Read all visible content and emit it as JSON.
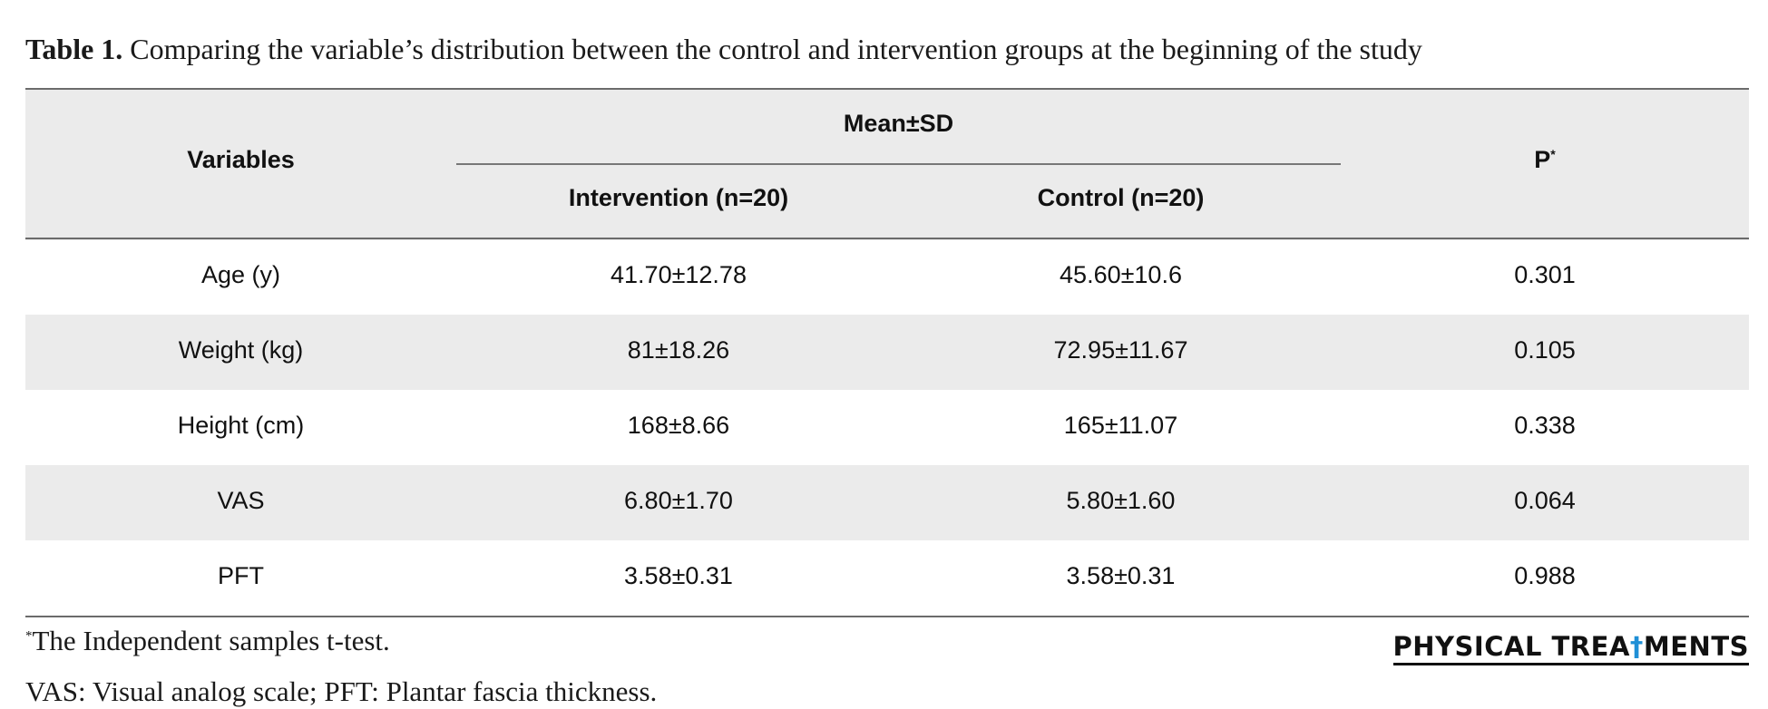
{
  "caption": {
    "label": "Table 1.",
    "text": "Comparing the variable’s distribution between the control and intervention groups at the beginning of the study"
  },
  "table": {
    "header": {
      "variables": "Variables",
      "mean_sd": "Mean±SD",
      "intervention": "Intervention (n=20)",
      "control": "Control (n=20)",
      "p": "P",
      "p_marker": "*"
    },
    "rows": [
      {
        "variable": "Age (y)",
        "intervention": "41.70±12.78",
        "control": "45.60±10.6",
        "p": "0.301"
      },
      {
        "variable": "Weight (kg)",
        "intervention": "81±18.26",
        "control": "72.95±11.67",
        "p": "0.105"
      },
      {
        "variable": "Height (cm)",
        "intervention": "168±8.66",
        "control": "165±11.07",
        "p": "0.338"
      },
      {
        "variable": "VAS",
        "intervention": "6.80±1.70",
        "control": "5.80±1.60",
        "p": "0.064"
      },
      {
        "variable": "PFT",
        "intervention": "3.58±0.31",
        "control": "3.58±0.31",
        "p": "0.988"
      }
    ]
  },
  "footnotes": {
    "marker": "*",
    "test": "The Independent samples t-test.",
    "abbreviations": "VAS: Visual analog scale; PFT: Plantar fascia thickness."
  },
  "logo": {
    "text_before": "PHYSICAL TREA",
    "accent": "†",
    "text_after": "MENTS"
  },
  "colors": {
    "header_shade": "#ebebeb",
    "rule": "#6b6b6b",
    "logo_accent": "#1f8fd6"
  }
}
